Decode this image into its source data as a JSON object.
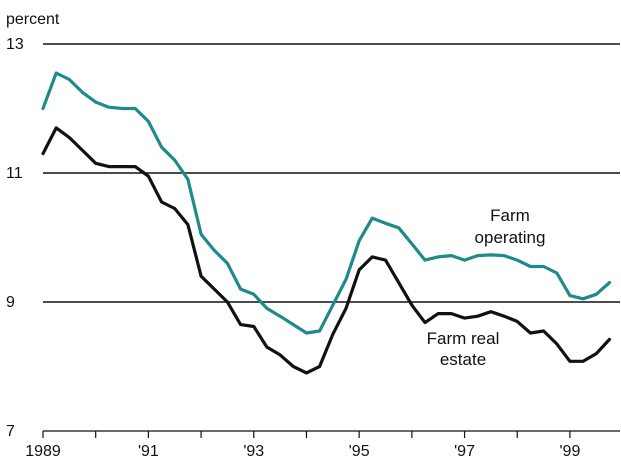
{
  "chart_data": {
    "type": "line",
    "y_unit_label": "percent",
    "ylim": [
      7,
      13
    ],
    "y_ticks": [
      7,
      9,
      11,
      13
    ],
    "x_range": [
      1989,
      1999.95
    ],
    "x_ticks": [
      1989,
      1991,
      1993,
      1995,
      1997,
      1999
    ],
    "x_tick_labels": [
      "1989",
      "'91",
      "'93",
      "'95",
      "'97",
      "'99"
    ],
    "grid": true,
    "series": [
      {
        "name": "Farm operating",
        "label_lines": [
          "Farm",
          "operating"
        ],
        "color": "#1e8a8c",
        "points": [
          [
            1989.0,
            12.0
          ],
          [
            1989.25,
            12.55
          ],
          [
            1989.5,
            12.45
          ],
          [
            1989.75,
            12.25
          ],
          [
            1990.0,
            12.1
          ],
          [
            1990.25,
            12.02
          ],
          [
            1990.5,
            12.0
          ],
          [
            1990.75,
            12.0
          ],
          [
            1991.0,
            11.8
          ],
          [
            1991.25,
            11.4
          ],
          [
            1991.5,
            11.2
          ],
          [
            1991.75,
            10.9
          ],
          [
            1992.0,
            10.05
          ],
          [
            1992.25,
            9.8
          ],
          [
            1992.5,
            9.6
          ],
          [
            1992.75,
            9.2
          ],
          [
            1993.0,
            9.12
          ],
          [
            1993.25,
            8.9
          ],
          [
            1993.5,
            8.78
          ],
          [
            1993.75,
            8.65
          ],
          [
            1994.0,
            8.52
          ],
          [
            1994.25,
            8.55
          ],
          [
            1994.5,
            8.95
          ],
          [
            1994.75,
            9.35
          ],
          [
            1995.0,
            9.95
          ],
          [
            1995.25,
            10.3
          ],
          [
            1995.5,
            10.22
          ],
          [
            1995.75,
            10.15
          ],
          [
            1996.0,
            9.9
          ],
          [
            1996.25,
            9.65
          ],
          [
            1996.5,
            9.7
          ],
          [
            1996.75,
            9.72
          ],
          [
            1997.0,
            9.65
          ],
          [
            1997.25,
            9.72
          ],
          [
            1997.5,
            9.73
          ],
          [
            1997.75,
            9.72
          ],
          [
            1998.0,
            9.65
          ],
          [
            1998.25,
            9.55
          ],
          [
            1998.5,
            9.55
          ],
          [
            1998.75,
            9.45
          ],
          [
            1999.0,
            9.1
          ],
          [
            1999.25,
            9.05
          ],
          [
            1999.5,
            9.12
          ],
          [
            1999.75,
            9.3
          ]
        ]
      },
      {
        "name": "Farm real estate",
        "label_lines": [
          "Farm real",
          "estate"
        ],
        "color": "#111111",
        "points": [
          [
            1989.0,
            11.3
          ],
          [
            1989.25,
            11.7
          ],
          [
            1989.5,
            11.55
          ],
          [
            1989.75,
            11.35
          ],
          [
            1990.0,
            11.15
          ],
          [
            1990.25,
            11.1
          ],
          [
            1990.5,
            11.1
          ],
          [
            1990.75,
            11.1
          ],
          [
            1991.0,
            10.95
          ],
          [
            1991.25,
            10.55
          ],
          [
            1991.5,
            10.45
          ],
          [
            1991.75,
            10.2
          ],
          [
            1992.0,
            9.4
          ],
          [
            1992.25,
            9.2
          ],
          [
            1992.5,
            9.0
          ],
          [
            1992.75,
            8.65
          ],
          [
            1993.0,
            8.62
          ],
          [
            1993.25,
            8.3
          ],
          [
            1993.5,
            8.18
          ],
          [
            1993.75,
            8.0
          ],
          [
            1994.0,
            7.9
          ],
          [
            1994.25,
            8.0
          ],
          [
            1994.5,
            8.5
          ],
          [
            1994.75,
            8.9
          ],
          [
            1995.0,
            9.5
          ],
          [
            1995.25,
            9.7
          ],
          [
            1995.5,
            9.65
          ],
          [
            1995.75,
            9.3
          ],
          [
            1996.0,
            8.95
          ],
          [
            1996.25,
            8.68
          ],
          [
            1996.5,
            8.82
          ],
          [
            1996.75,
            8.82
          ],
          [
            1997.0,
            8.75
          ],
          [
            1997.25,
            8.78
          ],
          [
            1997.5,
            8.85
          ],
          [
            1997.75,
            8.78
          ],
          [
            1998.0,
            8.7
          ],
          [
            1998.25,
            8.52
          ],
          [
            1998.5,
            8.55
          ],
          [
            1998.75,
            8.35
          ],
          [
            1999.0,
            8.08
          ],
          [
            1999.25,
            8.08
          ],
          [
            1999.5,
            8.2
          ],
          [
            1999.75,
            8.42
          ]
        ]
      }
    ]
  }
}
